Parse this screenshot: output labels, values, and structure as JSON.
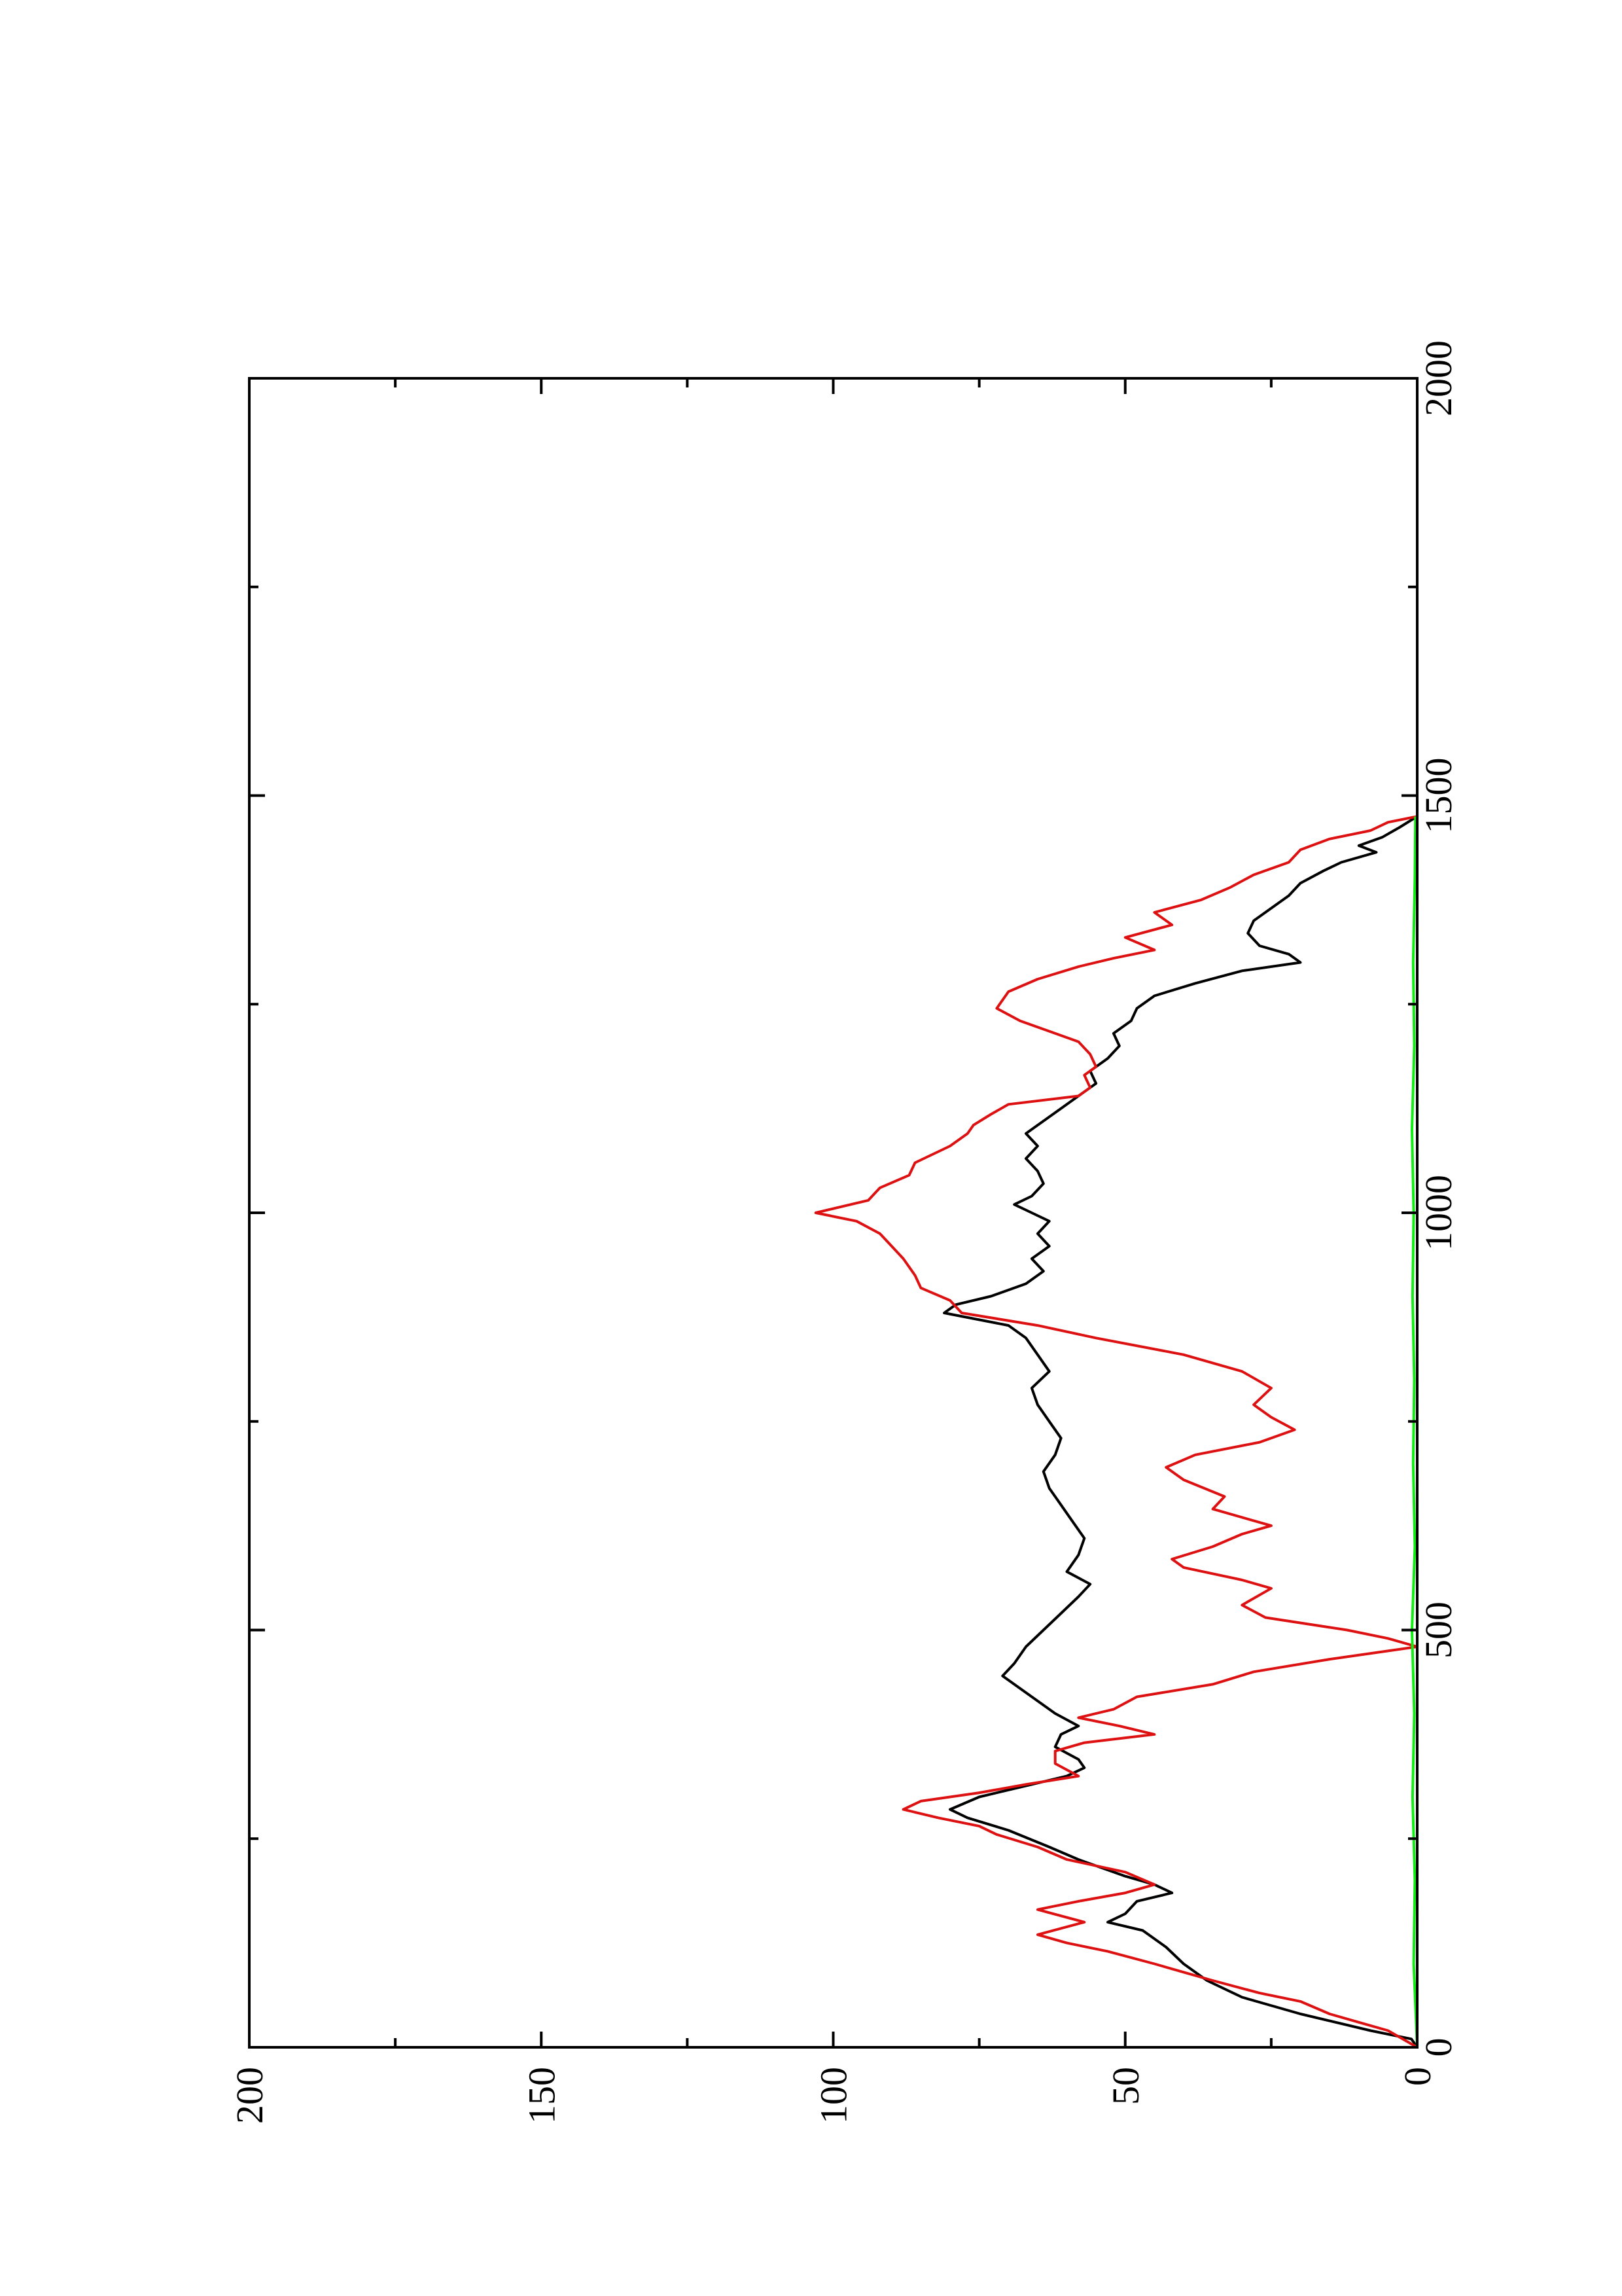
{
  "chart_data": {
    "type": "line",
    "orientation": "rotated-90-ccw",
    "title": "",
    "xlabel": "",
    "ylabel": "",
    "xlim": [
      0,
      2000
    ],
    "ylim": [
      0,
      200
    ],
    "grid": false,
    "x_ticks": [
      {
        "value": 0,
        "label": "0"
      },
      {
        "value": 500,
        "label": "500"
      },
      {
        "value": 1000,
        "label": "1000"
      },
      {
        "value": 1500,
        "label": "1500"
      },
      {
        "value": 2000,
        "label": "2000"
      }
    ],
    "x_minor_ticks": [
      250,
      750,
      1250,
      1750
    ],
    "y_ticks": [
      {
        "value": 0,
        "label": "0"
      },
      {
        "value": 50,
        "label": "50"
      },
      {
        "value": 100,
        "label": "100"
      },
      {
        "value": 150,
        "label": "150"
      },
      {
        "value": 200,
        "label": "200"
      }
    ],
    "y_minor_ticks": [
      25,
      75,
      125,
      175
    ],
    "series": [
      {
        "color": "#000000",
        "points": [
          [
            0,
            0
          ],
          [
            10,
            1
          ],
          [
            20,
            8
          ],
          [
            40,
            20
          ],
          [
            60,
            30
          ],
          [
            80,
            36
          ],
          [
            100,
            40
          ],
          [
            120,
            43
          ],
          [
            140,
            47
          ],
          [
            150,
            53
          ],
          [
            160,
            50
          ],
          [
            175,
            48
          ],
          [
            185,
            42
          ],
          [
            195,
            45
          ],
          [
            205,
            50
          ],
          [
            215,
            54
          ],
          [
            225,
            58
          ],
          [
            240,
            63
          ],
          [
            260,
            70
          ],
          [
            275,
            77
          ],
          [
            285,
            80
          ],
          [
            300,
            75
          ],
          [
            315,
            66
          ],
          [
            325,
            60
          ],
          [
            335,
            57
          ],
          [
            345,
            58
          ],
          [
            360,
            62
          ],
          [
            375,
            61
          ],
          [
            385,
            58
          ],
          [
            400,
            62
          ],
          [
            415,
            65
          ],
          [
            430,
            68
          ],
          [
            445,
            71
          ],
          [
            460,
            69
          ],
          [
            480,
            67
          ],
          [
            500,
            64
          ],
          [
            520,
            61
          ],
          [
            540,
            58
          ],
          [
            555,
            56
          ],
          [
            570,
            60
          ],
          [
            590,
            58
          ],
          [
            610,
            57
          ],
          [
            630,
            59
          ],
          [
            650,
            61
          ],
          [
            670,
            63
          ],
          [
            690,
            64
          ],
          [
            710,
            62
          ],
          [
            730,
            61
          ],
          [
            750,
            63
          ],
          [
            770,
            65
          ],
          [
            790,
            66
          ],
          [
            810,
            63
          ],
          [
            830,
            65
          ],
          [
            850,
            67
          ],
          [
            865,
            70
          ],
          [
            880,
            81
          ],
          [
            890,
            79
          ],
          [
            900,
            73
          ],
          [
            915,
            67
          ],
          [
            930,
            64
          ],
          [
            945,
            66
          ],
          [
            960,
            63
          ],
          [
            975,
            65
          ],
          [
            990,
            63
          ],
          [
            1000,
            66
          ],
          [
            1010,
            69
          ],
          [
            1020,
            66
          ],
          [
            1035,
            64
          ],
          [
            1050,
            65
          ],
          [
            1065,
            67
          ],
          [
            1080,
            65
          ],
          [
            1095,
            67
          ],
          [
            1110,
            64
          ],
          [
            1125,
            61
          ],
          [
            1140,
            58
          ],
          [
            1155,
            55
          ],
          [
            1170,
            56
          ],
          [
            1185,
            53
          ],
          [
            1200,
            51
          ],
          [
            1215,
            52
          ],
          [
            1230,
            49
          ],
          [
            1245,
            48
          ],
          [
            1260,
            45
          ],
          [
            1275,
            38
          ],
          [
            1290,
            30
          ],
          [
            1300,
            20
          ],
          [
            1310,
            22
          ],
          [
            1320,
            27
          ],
          [
            1335,
            29
          ],
          [
            1350,
            28
          ],
          [
            1365,
            25
          ],
          [
            1380,
            22
          ],
          [
            1395,
            20
          ],
          [
            1410,
            16
          ],
          [
            1420,
            13
          ],
          [
            1432,
            7
          ],
          [
            1440,
            10
          ],
          [
            1450,
            6
          ],
          [
            1462,
            3
          ],
          [
            1475,
            0
          ]
        ]
      },
      {
        "color": "#dd1111",
        "points": [
          [
            0,
            0
          ],
          [
            20,
            5
          ],
          [
            30,
            10
          ],
          [
            40,
            15
          ],
          [
            55,
            20
          ],
          [
            65,
            27
          ],
          [
            80,
            35
          ],
          [
            90,
            40
          ],
          [
            100,
            45
          ],
          [
            115,
            53
          ],
          [
            125,
            60
          ],
          [
            135,
            65
          ],
          [
            150,
            57
          ],
          [
            165,
            65
          ],
          [
            175,
            58
          ],
          [
            185,
            50
          ],
          [
            195,
            45
          ],
          [
            210,
            50
          ],
          [
            225,
            60
          ],
          [
            240,
            65
          ],
          [
            255,
            72
          ],
          [
            265,
            75
          ],
          [
            275,
            82
          ],
          [
            285,
            88
          ],
          [
            295,
            85
          ],
          [
            305,
            75
          ],
          [
            315,
            67
          ],
          [
            325,
            58
          ],
          [
            340,
            62
          ],
          [
            355,
            62
          ],
          [
            365,
            57
          ],
          [
            375,
            45
          ],
          [
            385,
            51
          ],
          [
            395,
            58
          ],
          [
            405,
            52
          ],
          [
            420,
            48
          ],
          [
            435,
            35
          ],
          [
            450,
            28
          ],
          [
            465,
            15
          ],
          [
            475,
            5
          ],
          [
            480,
            0
          ],
          [
            490,
            5
          ],
          [
            500,
            12
          ],
          [
            515,
            26
          ],
          [
            530,
            30
          ],
          [
            550,
            25
          ],
          [
            560,
            30
          ],
          [
            575,
            40
          ],
          [
            585,
            42
          ],
          [
            600,
            35
          ],
          [
            615,
            30
          ],
          [
            625,
            25
          ],
          [
            645,
            35
          ],
          [
            660,
            33
          ],
          [
            680,
            40
          ],
          [
            695,
            43
          ],
          [
            710,
            38
          ],
          [
            725,
            27
          ],
          [
            740,
            21
          ],
          [
            755,
            25
          ],
          [
            770,
            28
          ],
          [
            790,
            25
          ],
          [
            810,
            30
          ],
          [
            830,
            40
          ],
          [
            850,
            55
          ],
          [
            865,
            65
          ],
          [
            880,
            78
          ],
          [
            895,
            80
          ],
          [
            910,
            85
          ],
          [
            925,
            86
          ],
          [
            945,
            88
          ],
          [
            960,
            90
          ],
          [
            975,
            92
          ],
          [
            990,
            96
          ],
          [
            1000,
            103
          ],
          [
            1015,
            94
          ],
          [
            1030,
            92
          ],
          [
            1045,
            87
          ],
          [
            1060,
            86
          ],
          [
            1080,
            80
          ],
          [
            1095,
            77
          ],
          [
            1105,
            76
          ],
          [
            1118,
            73
          ],
          [
            1130,
            70
          ],
          [
            1140,
            58
          ],
          [
            1150,
            56
          ],
          [
            1165,
            57
          ],
          [
            1175,
            55
          ],
          [
            1190,
            56
          ],
          [
            1205,
            58
          ],
          [
            1215,
            62
          ],
          [
            1230,
            68
          ],
          [
            1245,
            72
          ],
          [
            1265,
            70
          ],
          [
            1280,
            65
          ],
          [
            1295,
            58
          ],
          [
            1305,
            52
          ],
          [
            1315,
            45
          ],
          [
            1330,
            50
          ],
          [
            1345,
            42
          ],
          [
            1360,
            45
          ],
          [
            1375,
            37
          ],
          [
            1390,
            32
          ],
          [
            1405,
            28
          ],
          [
            1420,
            22
          ],
          [
            1435,
            20
          ],
          [
            1448,
            15
          ],
          [
            1458,
            8
          ],
          [
            1468,
            5
          ],
          [
            1475,
            0
          ]
        ]
      },
      {
        "color": "#11ee11",
        "points": [
          [
            0,
            0
          ],
          [
            100,
            0.6
          ],
          [
            200,
            0.4
          ],
          [
            300,
            0.8
          ],
          [
            400,
            0.5
          ],
          [
            500,
            0.9
          ],
          [
            600,
            0.4
          ],
          [
            700,
            0.7
          ],
          [
            800,
            0.5
          ],
          [
            900,
            0.8
          ],
          [
            1000,
            0.6
          ],
          [
            1100,
            0.9
          ],
          [
            1200,
            0.5
          ],
          [
            1300,
            0.7
          ],
          [
            1400,
            0.4
          ],
          [
            1475,
            0.3
          ]
        ]
      }
    ]
  }
}
